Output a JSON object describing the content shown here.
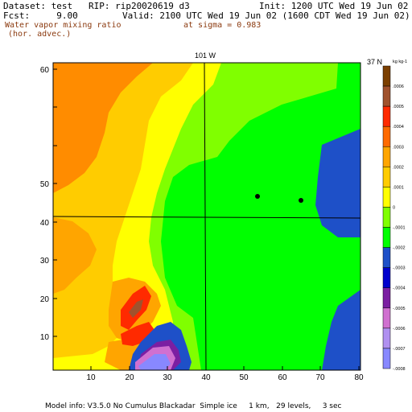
{
  "header": {
    "dataset_line": "Dataset: test   RIP: rip20020619 d3",
    "init_line": "Init: 1200 UTC Wed 19 Jun 02",
    "fcst_line": "Fcst:     9.00",
    "valid_line": "Valid: 2100 UTC Wed 19 Jun 02 (1600 CDT Wed 19 Jun 02)",
    "field_name": "Water vapor mixing ratio",
    "field_qualifier": "(hor. advec.)",
    "level": "at sigma = 0.983"
  },
  "plot": {
    "meridian_label": "101 W",
    "parallel_label": "37 N",
    "x_ticks": [
      "10",
      "20",
      "30",
      "40",
      "50",
      "60",
      "70",
      "80"
    ],
    "y_ticks": [
      "10",
      "20",
      "30",
      "40",
      "50",
      "60"
    ]
  },
  "colorbar": {
    "unit_label": "kg kg-1",
    "labels": [
      ".0006",
      ".0005",
      ".0004",
      ".0003",
      ".0002",
      ".0001",
      "0",
      "-.0001",
      "-.0002",
      "-.0003",
      "-.0004",
      "-.0005",
      "-.0006",
      "-.0007",
      "-.0008"
    ],
    "colors": [
      "#7B3F00",
      "#A0522D",
      "#FF2A00",
      "#FF6A00",
      "#FFA500",
      "#FFCC00",
      "#FFFF00",
      "#80FF00",
      "#00FF00",
      "#1E50C8",
      "#0000CD",
      "#7B1FA2",
      "#D070D0",
      "#B090F0",
      "#8888FF"
    ]
  },
  "footer": {
    "model_info": "Model info: V3.5.0 No Cumulus Blackadar  Simple ice     1 km,   29 levels,     3 sec"
  }
}
